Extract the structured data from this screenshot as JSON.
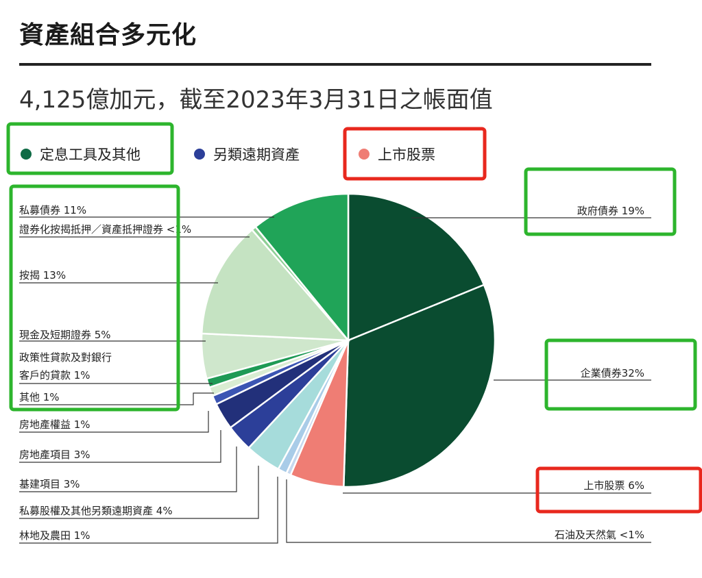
{
  "header": {
    "title": "資產組合多元化",
    "subtitle": "4,125億加元，截至2023年3月31日之帳面值"
  },
  "colors": {
    "fixed_income": "#0f6b45",
    "alternative": "#2c3f99",
    "public_equity": "#ef7d74",
    "highlight_green": "#2db52d",
    "highlight_red": "#e8281e"
  },
  "chart_data": {
    "type": "pie",
    "title": "資產組合多元化",
    "subtitle": "4,125億加元，截至2023年3月31日之帳面值",
    "legend_position": "top",
    "legend": [
      {
        "label": "定息工具及其他",
        "color": "#0f6b45"
      },
      {
        "label": "另類遠期資產",
        "color": "#2c3f99"
      },
      {
        "label": "上市股票",
        "color": "#ef7d74"
      }
    ],
    "slices": [
      {
        "label": "政府債券",
        "text": "政府債券 19%",
        "value": 19,
        "color": "#0a4c30",
        "group": "定息工具及其他"
      },
      {
        "label": "企業債券",
        "text": "企業債券32%",
        "value": 32,
        "color": "#0a4c30",
        "group": "定息工具及其他"
      },
      {
        "label": "上市股票",
        "text": "上市股票  6%",
        "value": 6,
        "color": "#ef7d74",
        "group": "上市股票"
      },
      {
        "label": "石油及天然氣",
        "text": "石油及天然氣 <1%",
        "value": 0.5,
        "color": "#c6d8ee",
        "group": "另類遠期資產"
      },
      {
        "label": "林地及農田",
        "text": "林地及農田 1%",
        "value": 1,
        "color": "#a9cce8",
        "group": "另類遠期資產"
      },
      {
        "label": "私募股權及其他另類遠期資產",
        "text": "私募股權及其他另類遠期資產 4%",
        "value": 4,
        "color": "#a6dcdb",
        "group": "另類遠期資產"
      },
      {
        "label": "基建項目",
        "text": "基建項目 3%",
        "value": 3,
        "color": "#2c3f99",
        "group": "另類遠期資產"
      },
      {
        "label": "房地產項目",
        "text": "房地產項目 3%",
        "value": 3,
        "color": "#22307a",
        "group": "另類遠期資產"
      },
      {
        "label": "房地產權益",
        "text": "房地產權益 1%",
        "value": 1,
        "color": "#3b55b3",
        "group": "另類遠期資產"
      },
      {
        "label": "其他",
        "text": "其他 1%",
        "value": 1,
        "color": "#d9ecd2",
        "group": "定息工具及其他"
      },
      {
        "label": "政策性貸款及對銀行客戶的貸款",
        "text_lines": [
          "政策性貸款及對銀行",
          "客戶的貸款 1%"
        ],
        "value": 1,
        "color": "#1e9a55",
        "group": "定息工具及其他"
      },
      {
        "label": "現金及短期證券",
        "text": "現金及短期證券 5%",
        "value": 5,
        "color": "#cfe7cc",
        "group": "定息工具及其他"
      },
      {
        "label": "按揭",
        "text": "按揭 13%",
        "value": 13,
        "color": "#c5e3c2",
        "group": "定息工具及其他"
      },
      {
        "label": "證券化按揭抵押／資產抵押證券",
        "text": "證券化按揭抵押／資產抵押證券 <1%",
        "value": 0.5,
        "color": "#8fcf95",
        "group": "定息工具及其他"
      },
      {
        "label": "私募債券",
        "text": "私募債券 11%",
        "value": 11,
        "color": "#20a458",
        "group": "定息工具及其他"
      }
    ]
  }
}
